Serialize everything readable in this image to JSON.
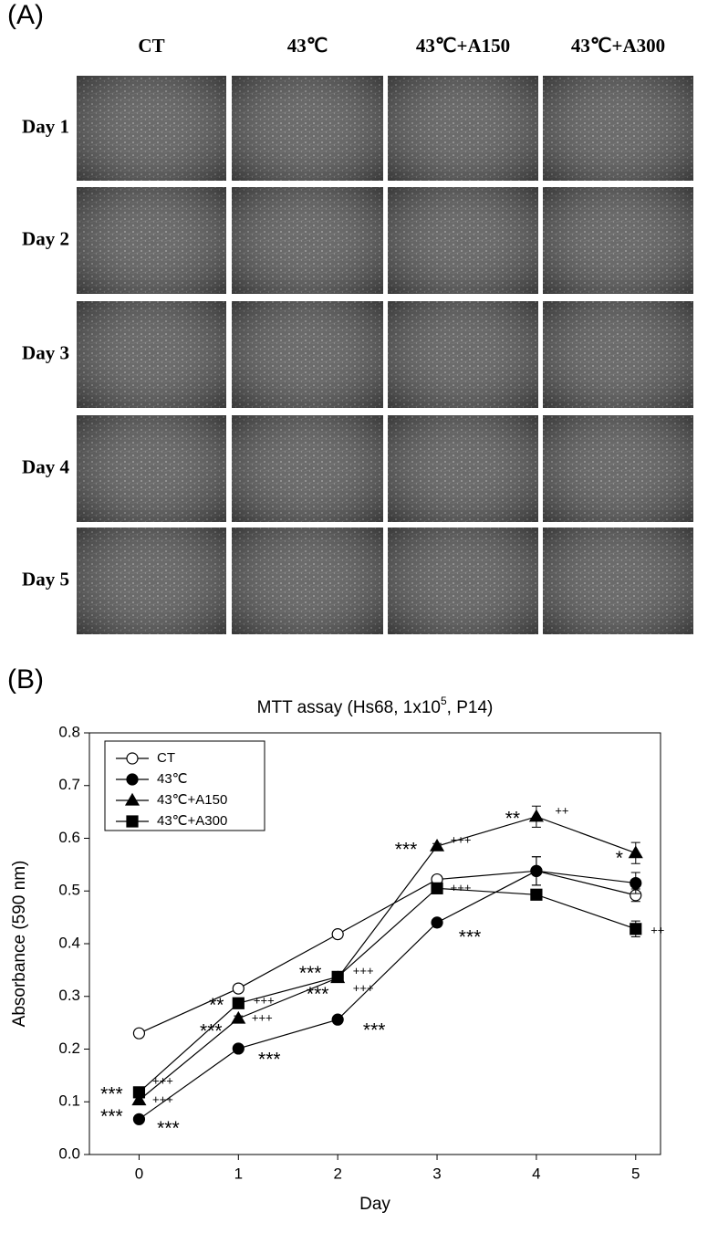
{
  "panel_a": {
    "label": "(A)",
    "columns": [
      "CT",
      "43℃",
      "43℃+A150",
      "43℃+A300"
    ],
    "rows": [
      "Day 1",
      "Day 2",
      "Day 3",
      "Day 4",
      "Day 5"
    ]
  },
  "panel_b_label": "(B)",
  "chart_data": {
    "type": "line",
    "title": [
      "MTT assay (Hs68, 1x10",
      "5",
      ", P14)"
    ],
    "x_label": "Day",
    "y_label": "Absorbance (590 nm)",
    "x": [
      0,
      1,
      2,
      3,
      4,
      5
    ],
    "xlim": [
      -0.5,
      5.25
    ],
    "xticks": [
      0,
      1,
      2,
      3,
      4,
      5
    ],
    "ylim": [
      0,
      0.8
    ],
    "yticks": [
      {
        "value": 0,
        "label": "0.0"
      },
      0.1,
      0.2,
      0.3,
      0.4,
      0.5,
      0.6,
      0.7,
      0.8
    ],
    "legend": "upper left",
    "series": [
      {
        "name": "CT",
        "color": "#000000",
        "marker": "circle-open",
        "values": [
          0.23,
          0.315,
          0.418,
          0.522,
          0.538,
          0.492
        ],
        "errors": [
          0.005,
          0.005,
          0.005,
          0.005,
          0.027,
          0.012
        ]
      },
      {
        "name": "43℃",
        "color": "#000000",
        "marker": "circle",
        "values": [
          0.067,
          0.201,
          0.256,
          0.44,
          0.538,
          0.515
        ],
        "errors": [
          0.005,
          0.005,
          0.005,
          0.005,
          0.027,
          0.02
        ]
      },
      {
        "name": "43℃+A150",
        "color": "#000000",
        "marker": "triangle",
        "values": [
          0.103,
          0.258,
          0.335,
          0.585,
          0.641,
          0.572
        ],
        "errors": [
          0.008,
          0.005,
          0.005,
          0.005,
          0.02,
          0.02
        ]
      },
      {
        "name": "43℃+A300",
        "color": "#000000",
        "marker": "square",
        "values": [
          0.118,
          0.287,
          0.337,
          0.505,
          0.493,
          0.428
        ],
        "errors": [
          0.01,
          0.008,
          0.01,
          0.005,
          0.005,
          0.015
        ]
      }
    ],
    "annotations": [
      "***",
      "+++",
      "**",
      "++",
      "*",
      "+++",
      "***",
      "++",
      "***",
      "+++",
      "+++",
      "***",
      "**",
      "+++",
      "***",
      "+++",
      "***",
      "***",
      "+++",
      "***",
      "+++",
      "***",
      "***"
    ]
  }
}
